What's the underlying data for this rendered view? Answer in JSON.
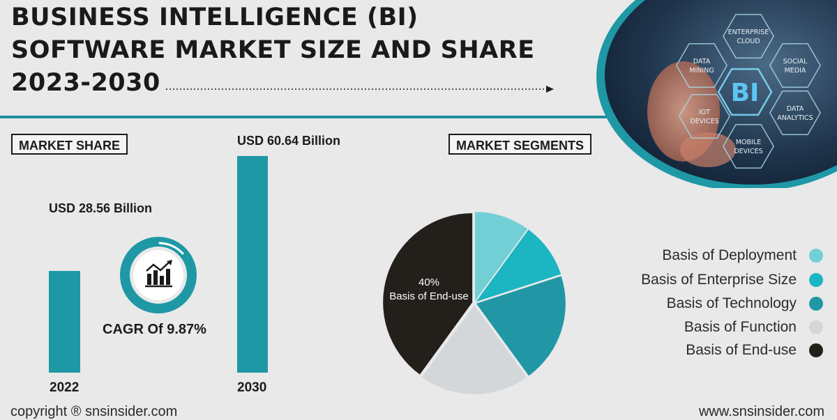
{
  "title_lines": [
    "BUSINESS INTELLIGENCE (BI)",
    "SOFTWARE MARKET SIZE AND SHARE",
    "2023-2030"
  ],
  "market_share_label": "MARKET SHARE",
  "market_segments_label": "MARKET SEGMENTS",
  "cagr": "CAGR Of 9.87%",
  "hero": {
    "center_label": "BI",
    "hex_labels": [
      [
        "ENTERPRISE",
        "CLOUD"
      ],
      [
        "SOCIAL",
        "MEDIA"
      ],
      [
        "DATA",
        "ANALYTICS"
      ],
      [
        "MOBILE",
        "DEVICES"
      ],
      [
        "IOT",
        "DEVICES"
      ],
      [
        "DATA",
        "MINING"
      ]
    ]
  },
  "footer": {
    "left": "copyright ® snsinsider.com",
    "right": "www.snsinsider.com"
  },
  "colors": {
    "teal_bar": "#1f98a6",
    "deployment": "#72cfd5",
    "enterprise_size": "#1cb5c2",
    "technology": "#2197a5",
    "function": "#d3d7da",
    "end_use": "#231f1b"
  },
  "chart_data": [
    {
      "type": "bar",
      "categories": [
        "2022",
        "2030"
      ],
      "values": [
        28.56,
        60.64
      ],
      "value_labels": [
        "USD 28.56 Billion",
        "USD 60.64 Billion"
      ],
      "unit": "USD Billion"
    },
    {
      "type": "pie",
      "labels": [
        "Basis of Deployment",
        "Basis of Enterprise Size",
        "Basis of Technology",
        "Basis of Function",
        "Basis of End-use"
      ],
      "values": [
        10,
        10,
        20,
        20,
        40
      ],
      "data_labels": [
        "",
        "",
        "",
        "",
        "40%"
      ],
      "colors": [
        "#72cfd5",
        "#1cb5c2",
        "#2197a5",
        "#d3d7da",
        "#231f1b"
      ],
      "legend_position": "right"
    }
  ]
}
